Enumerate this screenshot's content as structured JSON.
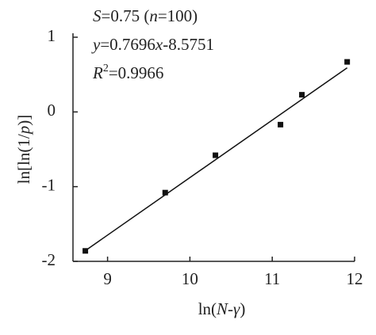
{
  "chart_data": {
    "type": "scatter",
    "x": [
      8.73,
      9.7,
      10.31,
      11.1,
      11.36,
      11.91
    ],
    "values": [
      -1.86,
      -1.08,
      -0.58,
      -0.17,
      0.23,
      0.67
    ],
    "color": "#111111",
    "fit": {
      "slope": 0.7696,
      "intercept": -8.5751,
      "color": "#111111"
    },
    "xlim": [
      8.58,
      12
    ],
    "xticks": [
      9,
      10,
      11,
      12
    ],
    "ylim": [
      -2,
      1
    ],
    "yticks": [
      -2,
      -1,
      0,
      1
    ],
    "x_label": [
      {
        "text": "ln("
      },
      {
        "text": "N",
        "italic": true
      },
      {
        "text": "-"
      },
      {
        "text": "γ",
        "italic": true
      },
      {
        "text": ")"
      }
    ],
    "y_label": [
      {
        "text": "ln[ln(1/"
      },
      {
        "text": "p",
        "italic": true
      },
      {
        "text": ")]"
      }
    ],
    "annotations": [
      [
        {
          "text": "S",
          "italic": true
        },
        {
          "text": "=0.75 ("
        },
        {
          "text": "n",
          "italic": true
        },
        {
          "text": "=100)"
        }
      ],
      [
        {
          "text": "y",
          "italic": true
        },
        {
          "text": "=0.7696"
        },
        {
          "text": "x",
          "italic": true
        },
        {
          "text": "-8.5751"
        }
      ],
      [
        {
          "text": "R",
          "italic": true
        },
        {
          "text": "2",
          "sup": true
        },
        {
          "text": "=0.9966"
        }
      ]
    ]
  }
}
